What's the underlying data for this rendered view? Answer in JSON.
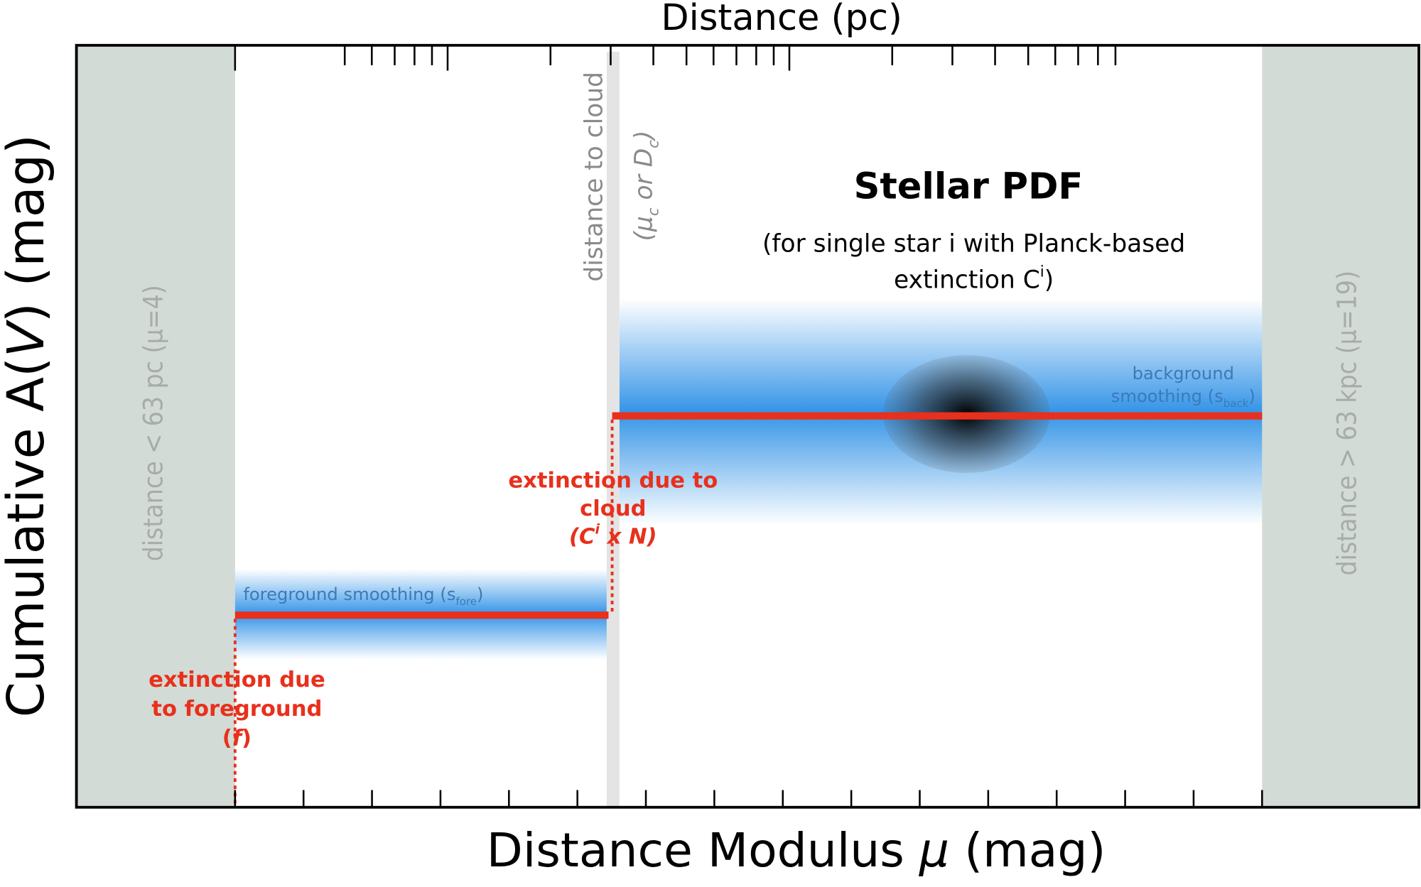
{
  "labels": {
    "top_axis": {
      "lines": [
        [
          {
            "text": "Distance (pc)"
          }
        ]
      ]
    },
    "bottom_axis": {
      "lines": [
        [
          {
            "text": "Distance Modulus "
          },
          {
            "text": "μ",
            "italic": true
          },
          {
            "text": " (mag)"
          }
        ]
      ]
    },
    "y_axis": {
      "lines": [
        [
          {
            "text": "Cumulative A("
          },
          {
            "text": "V",
            "italic": true
          },
          {
            "text": ") (mag)"
          }
        ]
      ]
    },
    "near_limit": {
      "lines": [
        [
          {
            "text": "distance < 63 pc (μ=4)"
          }
        ]
      ]
    },
    "far_limit": {
      "lines": [
        [
          {
            "text": "distance > 63 kpc (μ=19)"
          }
        ]
      ]
    },
    "cloud_distance": {
      "lines": [
        [
          {
            "text": "distance to cloud"
          }
        ]
      ]
    },
    "cloud_distance_symbol": {
      "lines": [
        [
          {
            "text": "(μ",
            "italic": true
          },
          {
            "text": "c",
            "italic": true,
            "shift": "sub"
          },
          {
            "text": " or D",
            "italic": true
          },
          {
            "text": "c",
            "italic": true,
            "shift": "sub"
          },
          {
            "text": ")",
            "italic": true
          }
        ]
      ]
    },
    "stellar_pdf_title": {
      "lines": [
        [
          {
            "text": "Stellar PDF"
          }
        ]
      ]
    },
    "stellar_pdf_note": {
      "lines": [
        [
          {
            "text": "(for single star i with Planck-based"
          }
        ],
        [
          {
            "text": "extinction C"
          },
          {
            "text": "i",
            "shift": "sup"
          },
          {
            "text": ")"
          }
        ]
      ]
    },
    "background_smoothing": {
      "lines": [
        [
          {
            "text": "background"
          }
        ],
        [
          {
            "text": "smoothing (s"
          },
          {
            "text": "back",
            "shift": "sub"
          },
          {
            "text": ")"
          }
        ]
      ]
    },
    "foreground_smoothing": {
      "lines": [
        [
          {
            "text": "foreground smoothing (s"
          },
          {
            "text": "fore",
            "shift": "sub"
          },
          {
            "text": ")"
          }
        ]
      ]
    },
    "cloud_extinction": {
      "lines": [
        [
          {
            "text": "extinction due to"
          }
        ],
        [
          {
            "text": "cloud"
          }
        ],
        [
          {
            "text": "(C",
            "italic": true
          },
          {
            "text": "i",
            "italic": true,
            "shift": "sup"
          },
          {
            "text": " x N)",
            "italic": true
          }
        ]
      ]
    },
    "foreground_extinction": {
      "lines": [
        [
          {
            "text": "extinction due"
          }
        ],
        [
          {
            "text": "to foreground"
          }
        ],
        [
          {
            "text": "("
          },
          {
            "text": "f",
            "italic": true
          },
          {
            "text": ")"
          }
        ]
      ]
    }
  }
}
